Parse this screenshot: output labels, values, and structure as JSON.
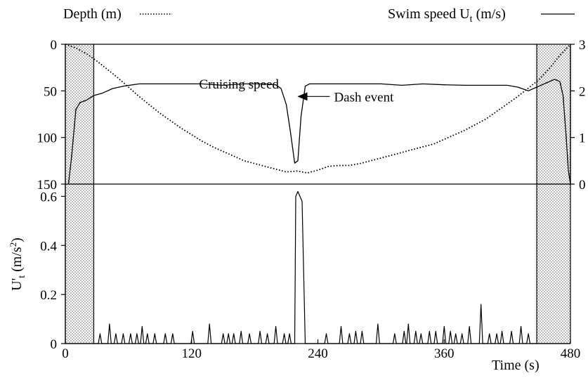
{
  "chart_data": [
    {
      "type": "line",
      "panel": "top",
      "legend": [
        {
          "name": "Depth (m)",
          "style": "dotted",
          "placement": "top-left"
        },
        {
          "name": "Swim speed U",
          "subscript": "t",
          "unit_suffix": " (m/s)",
          "style": "solid",
          "placement": "top-right"
        }
      ],
      "x": {
        "ticks": [
          0,
          120,
          240,
          360,
          480
        ],
        "lim": [
          0,
          480
        ]
      },
      "y_left": {
        "ticks": [
          0,
          50,
          100,
          150
        ],
        "lim": [
          0,
          150
        ],
        "inverted": true
      },
      "y_right": {
        "ticks": [
          0,
          1,
          2,
          3
        ],
        "lim": [
          0,
          3
        ]
      },
      "shaded_intervals": [
        [
          0,
          27
        ],
        [
          448,
          480
        ]
      ],
      "annotations": [
        {
          "text": "Cruising speed",
          "x": 165,
          "y": 43
        },
        {
          "text": "Dash event",
          "x": 258,
          "y": 56,
          "arrow_to": [
            220,
            56
          ]
        }
      ],
      "series": [
        {
          "name": "Depth (m)",
          "axis": "left",
          "style": "dotted",
          "x": [
            0,
            10,
            20,
            30,
            40,
            50,
            60,
            70,
            80,
            90,
            100,
            110,
            120,
            130,
            140,
            150,
            160,
            170,
            180,
            190,
            200,
            210,
            220,
            230,
            240,
            250,
            260,
            270,
            280,
            290,
            300,
            310,
            320,
            330,
            340,
            350,
            360,
            370,
            380,
            390,
            400,
            410,
            420,
            430,
            440,
            450,
            460,
            470,
            480
          ],
          "values": [
            0,
            4,
            10,
            18,
            27,
            36,
            46,
            56,
            65,
            74,
            82,
            90,
            97,
            104,
            110,
            115,
            120,
            125,
            128,
            131,
            134,
            137,
            136,
            138,
            135,
            131,
            130,
            130,
            128,
            125,
            122,
            119,
            116,
            113,
            110,
            107,
            102,
            97,
            92,
            86,
            80,
            72,
            64,
            56,
            47,
            38,
            26,
            12,
            0
          ]
        },
        {
          "name": "Swim speed Ut (m/s)",
          "axis": "right",
          "style": "solid",
          "x": [
            3,
            6,
            10,
            14,
            20,
            27,
            35,
            45,
            55,
            70,
            90,
            110,
            130,
            150,
            170,
            190,
            200,
            205,
            210,
            214,
            218,
            221,
            224,
            228,
            232,
            240,
            260,
            280,
            300,
            320,
            340,
            360,
            380,
            400,
            420,
            430,
            440,
            445,
            450,
            455,
            460,
            465,
            470,
            473,
            476,
            478,
            480
          ],
          "values": [
            0,
            0.6,
            1.6,
            1.75,
            1.8,
            1.9,
            1.95,
            2.05,
            2.1,
            2.15,
            2.15,
            2.15,
            2.15,
            2.12,
            2.15,
            2.15,
            2.13,
            2.05,
            1.7,
            1.1,
            0.45,
            0.5,
            1.45,
            2.1,
            2.15,
            2.15,
            2.15,
            2.15,
            2.15,
            2.12,
            2.15,
            2.13,
            2.12,
            2.12,
            2.12,
            2.08,
            2.0,
            2.05,
            2.1,
            2.15,
            2.2,
            2.25,
            2.2,
            1.9,
            1.0,
            0.3,
            0
          ]
        }
      ]
    },
    {
      "type": "line",
      "panel": "bottom",
      "ylabel": "U'",
      "ylabel_sub": "t",
      "ylabel_unit": " (m/s",
      "ylabel_sup": "2",
      "ylabel_close": ")",
      "xlabel": "Time (s)",
      "x": {
        "ticks": [
          0,
          120,
          240,
          360,
          480
        ],
        "lim": [
          0,
          480
        ]
      },
      "y": {
        "ticks": [
          0,
          0.2,
          0.4,
          0.6
        ],
        "lim": [
          0,
          0.65
        ]
      },
      "shaded_intervals": [
        [
          0,
          27
        ],
        [
          448,
          480
        ]
      ],
      "series": [
        {
          "name": "U't",
          "style": "solid",
          "spikes": [
            [
              33,
              0.04
            ],
            [
              42,
              0.08
            ],
            [
              48,
              0.04
            ],
            [
              55,
              0.04
            ],
            [
              62,
              0.04
            ],
            [
              68,
              0.04
            ],
            [
              73,
              0.07
            ],
            [
              78,
              0.04
            ],
            [
              85,
              0.04
            ],
            [
              95,
              0.04
            ],
            [
              102,
              0.04
            ],
            [
              121,
              0.05
            ],
            [
              137,
              0.08
            ],
            [
              150,
              0.04
            ],
            [
              155,
              0.04
            ],
            [
              160,
              0.04
            ],
            [
              167,
              0.05
            ],
            [
              175,
              0.04
            ],
            [
              185,
              0.05
            ],
            [
              192,
              0.04
            ],
            [
              200,
              0.07
            ],
            [
              208,
              0.04
            ],
            [
              213,
              0.04
            ],
            [
              248,
              0.04
            ],
            [
              262,
              0.07
            ],
            [
              270,
              0.04
            ],
            [
              276,
              0.05
            ],
            [
              282,
              0.05
            ],
            [
              297,
              0.08
            ],
            [
              313,
              0.04
            ],
            [
              322,
              0.05
            ],
            [
              326,
              0.08
            ],
            [
              333,
              0.05
            ],
            [
              338,
              0.04
            ],
            [
              346,
              0.05
            ],
            [
              352,
              0.05
            ],
            [
              360,
              0.07
            ],
            [
              366,
              0.05
            ],
            [
              371,
              0.04
            ],
            [
              377,
              0.04
            ],
            [
              384,
              0.07
            ],
            [
              395,
              0.16
            ],
            [
              403,
              0.04
            ],
            [
              410,
              0.04
            ],
            [
              415,
              0.05
            ],
            [
              424,
              0.05
            ],
            [
              433,
              0.07
            ],
            [
              440,
              0.04
            ]
          ],
          "peak": {
            "x": [
              218,
              219,
              221,
              223,
              225,
              228
            ],
            "values": [
              0.0,
              0.6,
              0.62,
              0.6,
              0.58,
              0.0
            ]
          }
        }
      ]
    }
  ]
}
